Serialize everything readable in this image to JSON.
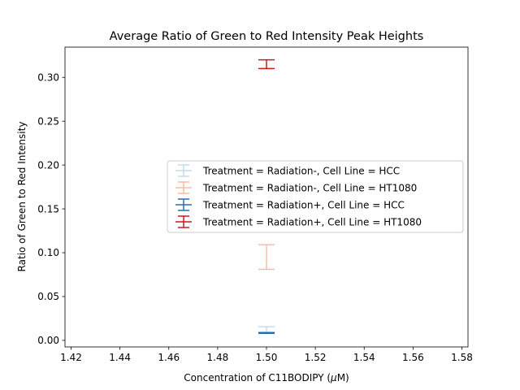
{
  "chart_data": {
    "type": "errorbar",
    "title": "Average Ratio of Green to Red Intensity Peak Heights",
    "xlabel_prefix": "Concentration of C11BODIPY (",
    "xlabel_unit": "μ",
    "xlabel_suffix": "M)",
    "ylabel": "Ratio of Green to Red Intensity",
    "xlim": [
      1.4175,
      1.5825
    ],
    "ylim": [
      -0.0075,
      0.3345
    ],
    "x_ticks": [
      1.42,
      1.44,
      1.46,
      1.48,
      1.5,
      1.52,
      1.54,
      1.56,
      1.58
    ],
    "x_tick_labels": [
      "1.42",
      "1.44",
      "1.46",
      "1.48",
      "1.50",
      "1.52",
      "1.54",
      "1.56",
      "1.58"
    ],
    "y_ticks": [
      0.0,
      0.05,
      0.1,
      0.15,
      0.2,
      0.25,
      0.3
    ],
    "y_tick_labels": [
      "0.00",
      "0.05",
      "0.10",
      "0.15",
      "0.20",
      "0.25",
      "0.30"
    ],
    "legend_position": "center-right",
    "series": [
      {
        "name": "Treatment = Radiation-, Cell Line = HCC",
        "color": "#c6dbef",
        "x": 1.5,
        "y": 0.0105,
        "ymin": 0.0085,
        "ymax": 0.0155
      },
      {
        "name": "Treatment = Radiation-, Cell Line = HT1080",
        "color": "#fcbba1",
        "x": 1.5,
        "y": 0.095,
        "ymin": 0.081,
        "ymax": 0.109
      },
      {
        "name": "Treatment = Radiation+, Cell Line = HCC",
        "color": "#2171b5",
        "x": 1.5,
        "y": 0.0085,
        "ymin": 0.0085,
        "ymax": 0.0085
      },
      {
        "name": "Treatment = Radiation+, Cell Line = HT1080",
        "color": "#cb181d",
        "x": 1.5,
        "y": 0.315,
        "ymin": 0.31,
        "ymax": 0.32
      }
    ]
  }
}
